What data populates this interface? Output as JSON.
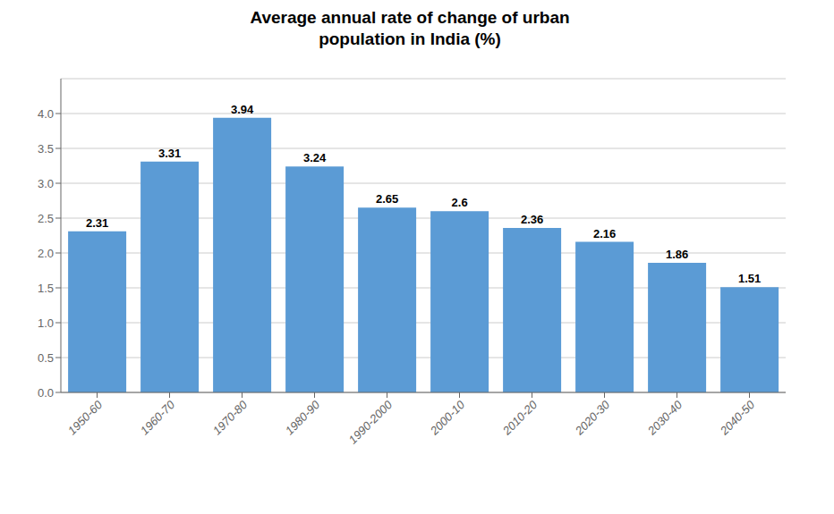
{
  "chart_data": {
    "type": "bar",
    "title": "Average annual rate of change of urban\npopulation in India (%)",
    "categories": [
      "1950-60",
      "1960-70",
      "1970-80",
      "1980-90",
      "1990-2000",
      "2000-10",
      "2010-20",
      "2020-30",
      "2030-40",
      "2040-50"
    ],
    "values": [
      2.31,
      3.31,
      3.94,
      3.24,
      2.65,
      2.6,
      2.36,
      2.16,
      1.86,
      1.51
    ],
    "color": "#5b9bd5",
    "ylim": [
      0,
      4.5
    ],
    "yticks": [
      {
        "value": 0,
        "label": "0.0"
      },
      0.5,
      {
        "value": 1,
        "label": "1.0"
      },
      1.5,
      {
        "value": 2,
        "label": "2.0"
      },
      2.5,
      {
        "value": 3,
        "label": "3.0"
      },
      3.5,
      {
        "value": 4,
        "label": "4.0"
      }
    ],
    "grid": true,
    "data_labels": true
  }
}
